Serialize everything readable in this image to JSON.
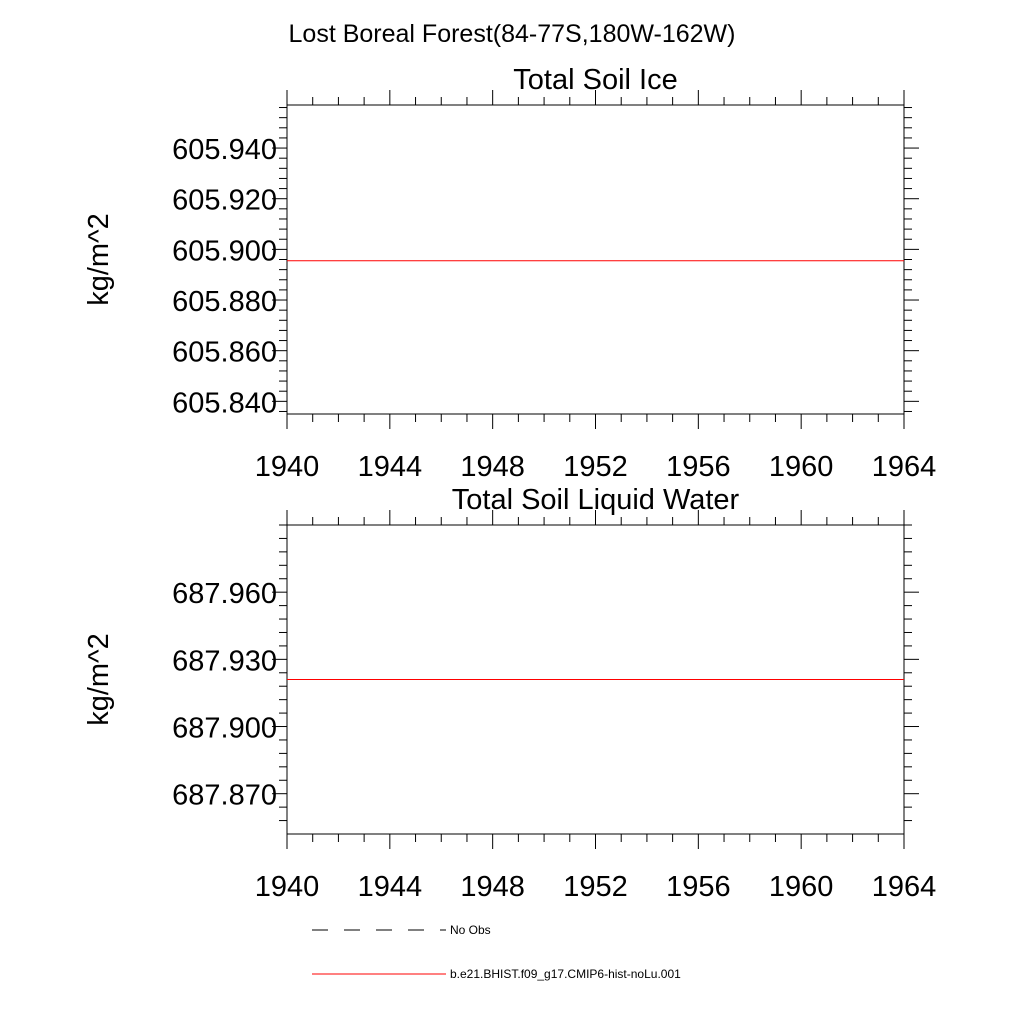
{
  "figure": {
    "title": "Lost Boreal Forest(84-77S,180W-162W)"
  },
  "chart_data": [
    {
      "type": "line",
      "title": "Total Soil Ice",
      "xlabel": "",
      "ylabel": "kg/m^2",
      "xlim": [
        1940,
        1964
      ],
      "ylim": [
        605.835,
        605.957
      ],
      "x_ticks": [
        "1940",
        "1944",
        "1948",
        "1952",
        "1956",
        "1960",
        "1964"
      ],
      "y_ticks": [
        "605.840",
        "605.860",
        "605.880",
        "605.900",
        "605.920",
        "605.940"
      ],
      "y_minor_step": 0.004,
      "grid": false,
      "series": [
        {
          "name": "No Obs",
          "color": "#000000",
          "dash": "dashed",
          "x": [],
          "y": []
        },
        {
          "name": "b.e21.BHIST.f09_g17.CMIP6-hist-noLu.001",
          "color": "#ff0000",
          "dash": "solid",
          "x": [
            1940,
            1964
          ],
          "y": [
            605.8955,
            605.8955
          ]
        }
      ]
    },
    {
      "type": "line",
      "title": "Total Soil Liquid Water",
      "xlabel": "",
      "ylabel": "kg/m^2",
      "xlim": [
        1940,
        1964
      ],
      "ylim": [
        687.852,
        687.99
      ],
      "x_ticks": [
        "1940",
        "1944",
        "1948",
        "1952",
        "1956",
        "1960",
        "1964"
      ],
      "y_ticks": [
        "687.870",
        "687.900",
        "687.930",
        "687.960"
      ],
      "y_minor_step": 0.006,
      "grid": false,
      "series": [
        {
          "name": "No Obs",
          "color": "#000000",
          "dash": "dashed",
          "x": [],
          "y": []
        },
        {
          "name": "b.e21.BHIST.f09_g17.CMIP6-hist-noLu.001",
          "color": "#ff0000",
          "dash": "solid",
          "x": [
            1940,
            1964
          ],
          "y": [
            687.921,
            687.921
          ]
        }
      ]
    }
  ],
  "legend": {
    "placement": "bottom-center",
    "items": [
      {
        "label": "No Obs",
        "color": "#000000",
        "dash": "dashed"
      },
      {
        "label": "b.e21.BHIST.f09_g17.CMIP6-hist-noLu.001",
        "color": "#ff0000",
        "dash": "solid"
      }
    ]
  }
}
